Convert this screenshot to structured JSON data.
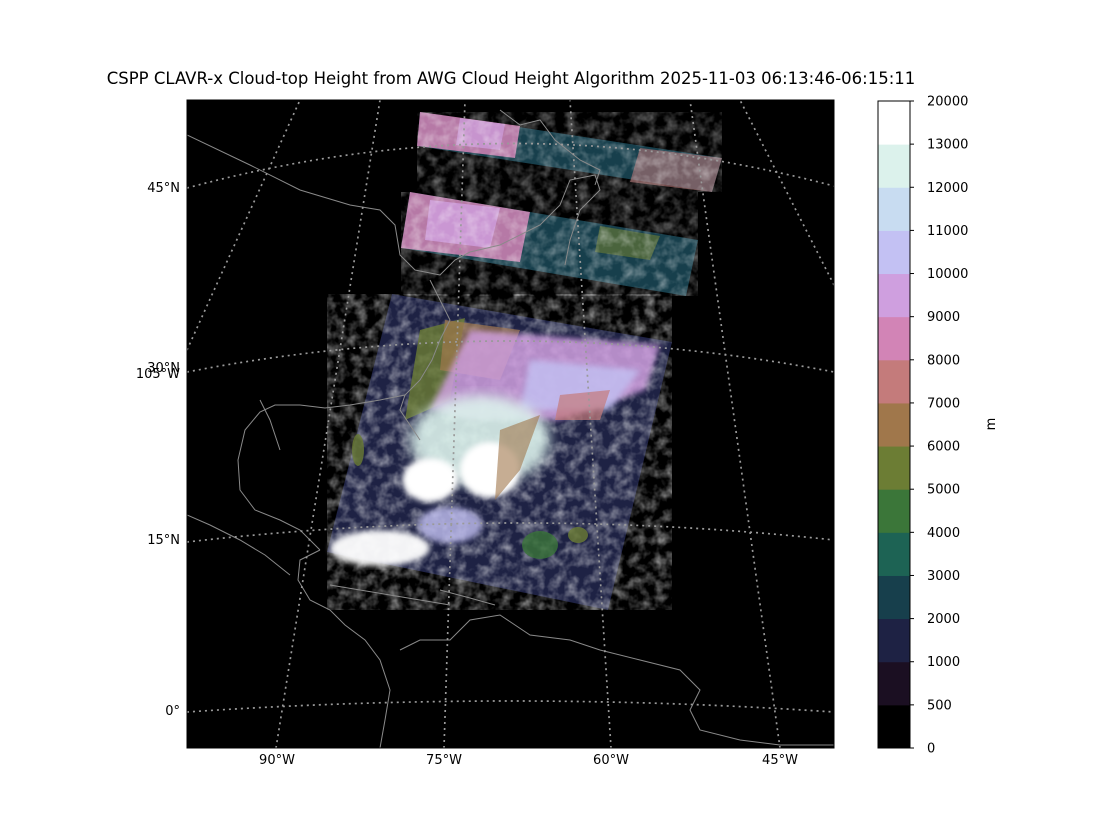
{
  "title": "CSPP CLAVR-x Cloud-top Height from AWG Cloud Height Algorithm 2025-11-03 06:13:46-06:15:11",
  "map": {
    "background": "#000000",
    "coastline_color": "#8a8a8a",
    "gridline_color": "#9a9a9a",
    "lat_labels": [
      "45°N",
      "30°N",
      "15°N",
      "0°"
    ],
    "lon_labels": [
      "90°W",
      "75°W",
      "60°W",
      "45°W"
    ],
    "extra_label": "105°W"
  },
  "colorbar": {
    "unit": "m",
    "ticks": [
      "0",
      "500",
      "1000",
      "2000",
      "3000",
      "4000",
      "5000",
      "6000",
      "7000",
      "8000",
      "9000",
      "10000",
      "11000",
      "12000",
      "13000",
      "20000"
    ],
    "colors": [
      "#000000",
      "#1b0f22",
      "#1e2244",
      "#173f4c",
      "#1d6354",
      "#3b7639",
      "#6c7d34",
      "#a0774b",
      "#c47b7b",
      "#d284b6",
      "#cf9fdf",
      "#c3c1f3",
      "#c8dcf1",
      "#dcf2ec",
      "#ffffff"
    ]
  }
}
